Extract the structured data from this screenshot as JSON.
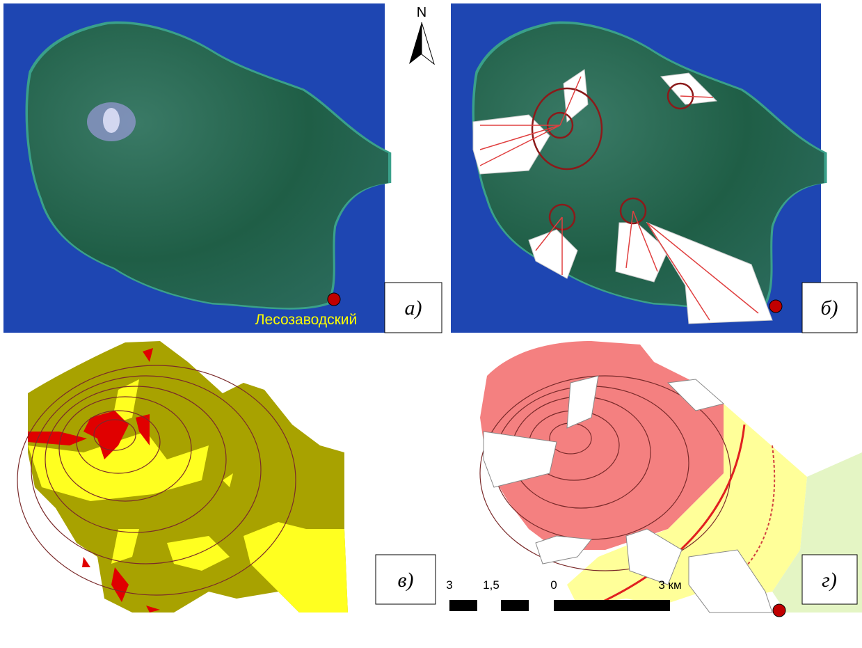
{
  "north": "N",
  "place": "Лесозаводский",
  "panels": [
    {
      "label": "а)"
    },
    {
      "label": "б)"
    },
    {
      "label": "в)"
    },
    {
      "label": "г)"
    }
  ],
  "scale": {
    "labels": [
      "3",
      "1,5",
      "0",
      "3 км"
    ]
  }
}
